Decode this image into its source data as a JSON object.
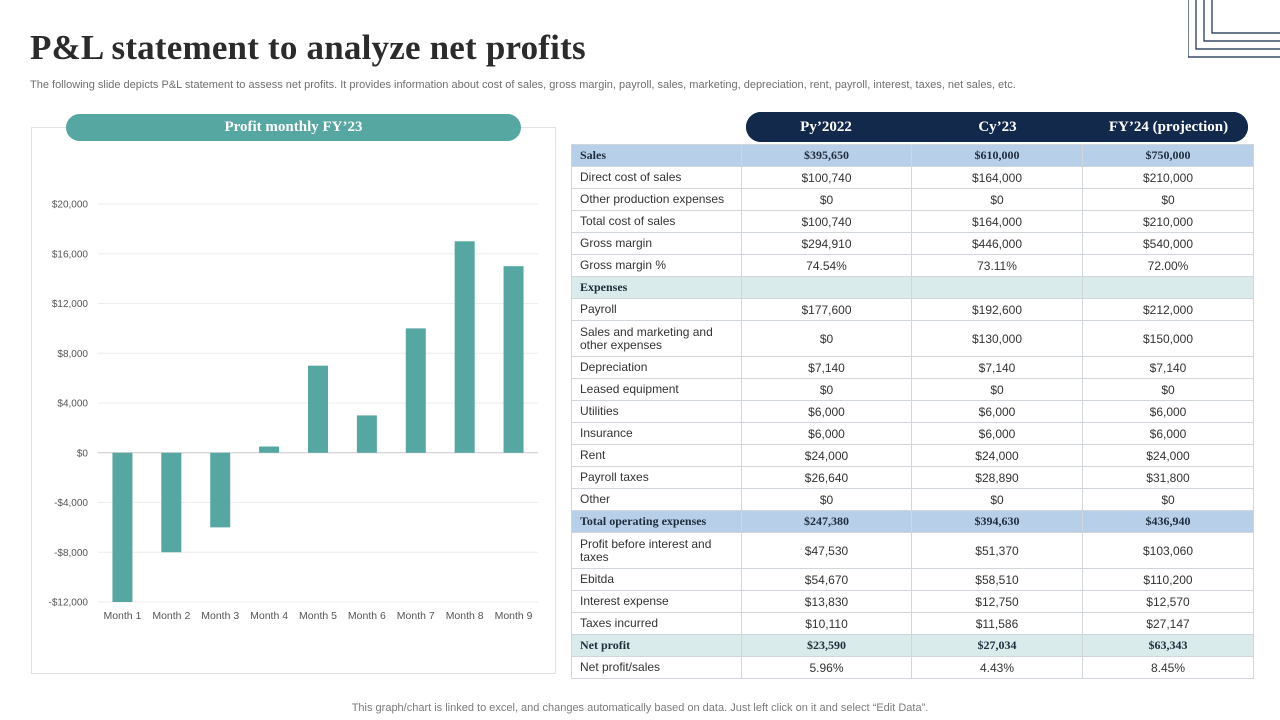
{
  "page": {
    "title": "P&L statement to analyze net profits",
    "subtitle": "The following slide depicts P&L statement to assess net profits. It provides information about cost of sales, gross margin, payroll, sales, marketing, depreciation, rent, payroll, interest, taxes, net sales, etc.",
    "footnote": "This graph/chart is linked to excel,  and changes automatically based on data. Just left click on it and select “Edit Data”."
  },
  "chart_data": {
    "type": "bar",
    "title": "Profit  monthly  FY’23",
    "categories": [
      "Month 1",
      "Month 2",
      "Month 3",
      "Month 4",
      "Month 5",
      "Month 6",
      "Month 7",
      "Month 8",
      "Month 9"
    ],
    "values": [
      -12000,
      -8000,
      -6000,
      500,
      7000,
      3000,
      10000,
      17000,
      15000
    ],
    "ylim": [
      -12000,
      20000
    ],
    "yticks": [
      -12000,
      -8000,
      -4000,
      0,
      4000,
      8000,
      12000,
      16000,
      20000
    ],
    "ytick_labels": [
      "-$12,000",
      "-$8,000",
      "-$4,000",
      "$0",
      "$4,000",
      "$8,000",
      "$12,000",
      "$16,000",
      "$20,000"
    ],
    "grid": true,
    "bar_color": "#56a6a1"
  },
  "table": {
    "columns": [
      "Py’2022",
      "Cy’23",
      "FY’24  (projection)"
    ],
    "rows": [
      {
        "label": "Sales",
        "values": [
          "$395,650",
          "$610,000",
          "$750,000"
        ],
        "style": "hl-blue"
      },
      {
        "label": "Direct cost of sales",
        "values": [
          "$100,740",
          "$164,000",
          "$210,000"
        ],
        "style": ""
      },
      {
        "label": "Other production expenses",
        "values": [
          "$0",
          "$0",
          "$0"
        ],
        "style": ""
      },
      {
        "label": "Total cost of sales",
        "values": [
          "$100,740",
          "$164,000",
          "$210,000"
        ],
        "style": ""
      },
      {
        "label": "Gross margin",
        "values": [
          "$294,910",
          "$446,000",
          "$540,000"
        ],
        "style": ""
      },
      {
        "label": "Gross margin %",
        "values": [
          "74.54%",
          "73.11%",
          "72.00%"
        ],
        "style": ""
      },
      {
        "label": "Expenses",
        "values": [
          "",
          "",
          ""
        ],
        "style": "hl-teal"
      },
      {
        "label": "Payroll",
        "values": [
          "$177,600",
          "$192,600",
          "$212,000"
        ],
        "style": ""
      },
      {
        "label": "Sales and marketing and other expenses",
        "values": [
          "$0",
          "$130,000",
          "$150,000"
        ],
        "style": "tall"
      },
      {
        "label": "Depreciation",
        "values": [
          "$7,140",
          "$7,140",
          "$7,140"
        ],
        "style": ""
      },
      {
        "label": "Leased equipment",
        "values": [
          "$0",
          "$0",
          "$0"
        ],
        "style": ""
      },
      {
        "label": "Utilities",
        "values": [
          "$6,000",
          "$6,000",
          "$6,000"
        ],
        "style": ""
      },
      {
        "label": "Insurance",
        "values": [
          "$6,000",
          "$6,000",
          "$6,000"
        ],
        "style": ""
      },
      {
        "label": "Rent",
        "values": [
          "$24,000",
          "$24,000",
          "$24,000"
        ],
        "style": ""
      },
      {
        "label": "Payroll taxes",
        "values": [
          "$26,640",
          "$28,890",
          "$31,800"
        ],
        "style": ""
      },
      {
        "label": "Other",
        "values": [
          "$0",
          "$0",
          "$0"
        ],
        "style": ""
      },
      {
        "label": "Total  operating  expenses",
        "values": [
          "$247,380",
          "$394,630",
          "$436,940"
        ],
        "style": "hl-blue"
      },
      {
        "label": "Profit before interest and taxes",
        "values": [
          "$47,530",
          "$51,370",
          "$103,060"
        ],
        "style": "tall"
      },
      {
        "label": "Ebitda",
        "values": [
          "$54,670",
          "$58,510",
          "$110,200"
        ],
        "style": ""
      },
      {
        "label": "Interest expense",
        "values": [
          "$13,830",
          "$12,750",
          "$12,570"
        ],
        "style": ""
      },
      {
        "label": "Taxes incurred",
        "values": [
          "$10,110",
          "$11,586",
          "$27,147"
        ],
        "style": ""
      },
      {
        "label": "Net profit",
        "values": [
          "$23,590",
          "$27,034",
          "$63,343"
        ],
        "style": "hl-teal"
      },
      {
        "label": "Net profit/sales",
        "values": [
          "5.96%",
          "4.43%",
          "8.45%"
        ],
        "style": ""
      }
    ]
  }
}
